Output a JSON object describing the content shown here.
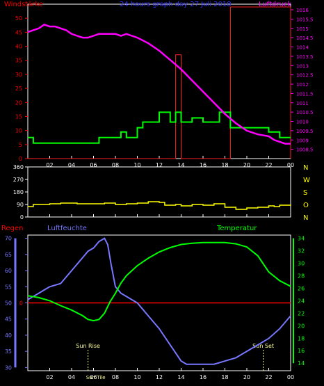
{
  "colors": {
    "background": "#000000",
    "frame": "#ffffff",
    "wind_label": "#ff0000",
    "pressure": "#ff00ff",
    "wind_gust": "#ff2020",
    "wind_avg": "#00ff00",
    "title": "#3333ff",
    "direction": "#ffff00",
    "compass": "#ffff00",
    "rain": "#ff0000",
    "humidity": "#7777ff",
    "temperature": "#00ff00",
    "sun_marker": "#ffff99",
    "tick_label_white": "#ffffff"
  },
  "chart_data": [
    {
      "id": "wind-pressure",
      "type": "line",
      "title": "24 hours graph day  27 Juli 2018",
      "left_axis_title": "Windstärke",
      "right_axis_title": "Luftdruck",
      "x_ticks": [
        "02",
        "04",
        "06",
        "08",
        "10",
        "12",
        "14",
        "16",
        "18",
        "20",
        "22",
        "00"
      ],
      "x_tick_hours": [
        2,
        4,
        6,
        8,
        10,
        12,
        14,
        16,
        18,
        20,
        22,
        24
      ],
      "x_range": [
        0,
        24
      ],
      "left_ticks": [
        "0",
        "5",
        "10",
        "15",
        "20",
        "25",
        "30",
        "35",
        "40",
        "45",
        "50"
      ],
      "left_range": [
        0,
        55
      ],
      "right_ticks": [
        "1008.5",
        "1009",
        "1009.5",
        "1010",
        "1010.5",
        "1011",
        "1011.5",
        "1012",
        "1012.5",
        "1013",
        "1013.5",
        "1014",
        "1014.5",
        "1015",
        "1015.5",
        "1016"
      ],
      "right_range": [
        1008.0,
        1016.3
      ],
      "series": [
        {
          "name": "Luftdruck",
          "axis": "right",
          "x": [
            0,
            0.5,
            1,
            1.5,
            2,
            2.5,
            3,
            3.5,
            4,
            4.5,
            5,
            5.5,
            6,
            6.5,
            7,
            7.5,
            8,
            8.5,
            9,
            9.5,
            10,
            11,
            12,
            13,
            14,
            15,
            16,
            17,
            18,
            19,
            20,
            21,
            22,
            22.5,
            23,
            23.5,
            24
          ],
          "values": [
            1014.8,
            1014.9,
            1015.0,
            1015.2,
            1015.1,
            1015.1,
            1015.0,
            1014.9,
            1014.7,
            1014.6,
            1014.5,
            1014.5,
            1014.6,
            1014.7,
            1014.7,
            1014.7,
            1014.7,
            1014.6,
            1014.7,
            1014.6,
            1014.5,
            1014.2,
            1013.8,
            1013.3,
            1012.8,
            1012.2,
            1011.6,
            1011.0,
            1010.4,
            1009.9,
            1009.5,
            1009.3,
            1009.2,
            1009.0,
            1008.9,
            1008.8,
            1008.8
          ]
        },
        {
          "name": "Windböen",
          "axis": "left",
          "step": true,
          "x": [
            0,
            13,
            13.5,
            14,
            17.5,
            18.5,
            24
          ],
          "values": [
            0,
            0,
            37,
            0,
            0,
            54,
            0
          ]
        },
        {
          "name": "Windmittel",
          "axis": "left",
          "step": true,
          "x": [
            0,
            0.5,
            6.5,
            8,
            8.5,
            9,
            10,
            10.5,
            12,
            13,
            13.5,
            14,
            15,
            16,
            17.5,
            18.5,
            20,
            22,
            23,
            24
          ],
          "values": [
            7.5,
            5.5,
            7.5,
            7.5,
            9.5,
            7.5,
            11,
            13,
            16.5,
            13,
            16.5,
            13,
            14.5,
            13,
            16.5,
            11,
            11,
            9.5,
            7.5,
            7.5
          ]
        }
      ]
    },
    {
      "id": "wind-direction",
      "type": "line",
      "x_ticks": [
        "02",
        "04",
        "06",
        "08",
        "10",
        "12",
        "14",
        "16",
        "18",
        "20",
        "22",
        "00"
      ],
      "x_range": [
        0,
        24
      ],
      "left_ticks": [
        "0",
        "90",
        "180",
        "270",
        "360"
      ],
      "y_range": [
        0,
        360
      ],
      "compass_labels": [
        "N",
        "W",
        "S",
        "O",
        "N"
      ],
      "series": [
        {
          "name": "Windrichtung",
          "step": true,
          "x": [
            0,
            0.5,
            2,
            3,
            4.5,
            6,
            7,
            8,
            9,
            10,
            11,
            12,
            12.5,
            13.5,
            14,
            15,
            16,
            17,
            18,
            19,
            20,
            21,
            22,
            22.5,
            23,
            24
          ],
          "values": [
            75,
            90,
            95,
            100,
            95,
            95,
            100,
            90,
            95,
            100,
            110,
            105,
            85,
            90,
            80,
            90,
            85,
            95,
            70,
            55,
            65,
            70,
            80,
            75,
            85,
            90
          ]
        }
      ]
    },
    {
      "id": "humidity-temperature",
      "type": "line",
      "left_title": "Regen",
      "humidity_title": "Luftfeuchte",
      "temperature_title": "Temperatur",
      "x_ticks": [
        "02",
        "04",
        "06",
        "08",
        "10",
        "12",
        "14",
        "16",
        "18",
        "20",
        "22",
        "00"
      ],
      "x_range": [
        0,
        24
      ],
      "left_ticks": [
        "30",
        "35",
        "40",
        "45",
        "50",
        "55",
        "60",
        "65",
        "70"
      ],
      "humidity_range": [
        29,
        71
      ],
      "right_ticks": [
        "14",
        "16",
        "18",
        "20",
        "22",
        "24",
        "26",
        "28",
        "30",
        "32",
        "34"
      ],
      "temperature_range": [
        12.8,
        34.5
      ],
      "rain_zero_value": 50,
      "rain_zero_label": "0",
      "sunrise_label": "Sun Rise",
      "sunrise_hour": 5.5,
      "sunset_label": "Sun Set",
      "sunset_hour": 21.5,
      "bottom_extra_label": "Sun Tile",
      "series": [
        {
          "name": "Luftfeuchte",
          "axis": "left",
          "x": [
            0,
            0.5,
            1,
            1.5,
            2,
            3,
            3.5,
            4,
            4.5,
            5,
            5.5,
            6,
            6.5,
            7,
            7.3,
            7.6,
            8,
            8.5,
            9,
            9.5,
            10,
            10.5,
            11,
            12,
            13,
            14,
            14.5,
            15,
            16,
            17,
            18,
            19,
            20,
            21,
            22,
            23,
            23.5,
            24
          ],
          "values": [
            51,
            52,
            53,
            54,
            55,
            56,
            58,
            60,
            62,
            64,
            66,
            67,
            69,
            70,
            68,
            62,
            55,
            53,
            52,
            51,
            50,
            48,
            46,
            42,
            37,
            32,
            31,
            31,
            31,
            31,
            32,
            33,
            35,
            37,
            39,
            42,
            44,
            46
          ]
        },
        {
          "name": "Temperatur",
          "axis": "right",
          "x": [
            0,
            1,
            2,
            3,
            4,
            5,
            5.5,
            6,
            6.5,
            7,
            7.5,
            8,
            8.5,
            9,
            10,
            11,
            12,
            13,
            14,
            15,
            16,
            17,
            18,
            19,
            20,
            21,
            22,
            23,
            24
          ],
          "values": [
            24.8,
            24.5,
            24.0,
            23.2,
            22.5,
            21.6,
            21.0,
            20.8,
            21.0,
            22.0,
            23.8,
            25.2,
            26.8,
            28.0,
            29.6,
            30.8,
            31.8,
            32.5,
            33.0,
            33.2,
            33.3,
            33.3,
            33.3,
            33.1,
            32.6,
            31.2,
            28.6,
            27.2,
            26.3
          ]
        },
        {
          "name": "Regen",
          "axis": "left",
          "x": [
            0,
            24
          ],
          "values": [
            50,
            50
          ]
        }
      ]
    }
  ]
}
